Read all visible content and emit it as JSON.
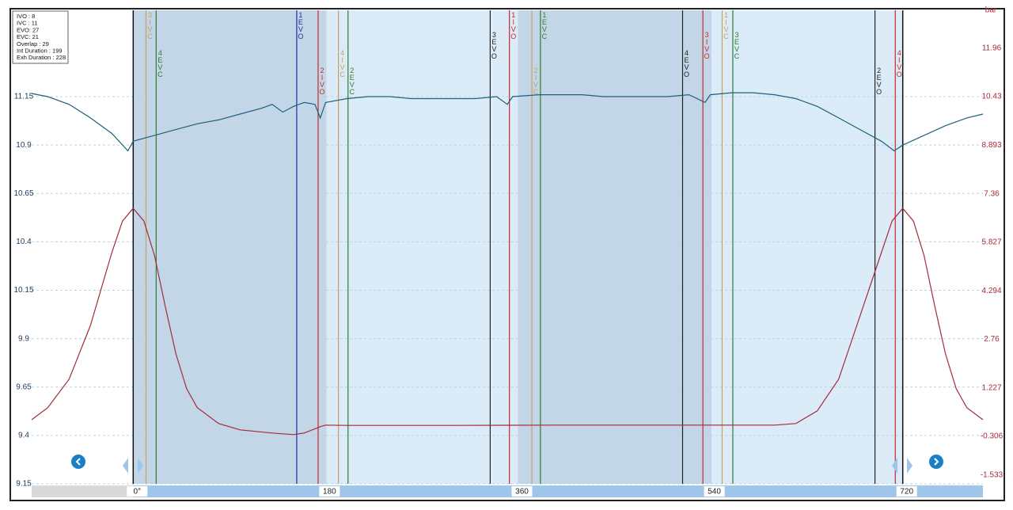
{
  "chart_data": {
    "type": "line",
    "info": [
      "IVO : 8",
      "IVC : 11",
      "EVO: 27",
      "EVC: 21",
      "Overlap : 29",
      "Int Duration : 199",
      "Exh Duration : 228"
    ],
    "y2label": "bar",
    "xlim": [
      -95,
      795
    ],
    "xticks": [
      {
        "value": 0,
        "label": "0°"
      },
      180,
      360,
      540,
      720
    ],
    "ylim": [
      9.15,
      11.596
    ],
    "yticks": [
      11.15,
      10.9,
      10.65,
      10.4,
      10.15,
      9.9,
      9.65,
      9.4,
      9.15
    ],
    "y2lim": [
      -1.808,
      13.16
    ],
    "y2ticks": [
      11.96,
      10.43,
      8.893,
      7.36,
      5.827,
      4.294,
      2.76,
      1.227,
      -0.306,
      -1.533
    ],
    "grid": true,
    "bands": [
      {
        "from": 0,
        "to": 181,
        "color": "#c2d6e8"
      },
      {
        "from": 181,
        "to": 360,
        "color": "#dcebf8"
      },
      {
        "from": 360,
        "to": 541,
        "color": "#c2d6e8"
      },
      {
        "from": 541,
        "to": 720,
        "color": "#dcebf8"
      }
    ],
    "cursors": [
      0,
      720
    ],
    "events": [
      {
        "label": "3 IVC",
        "x": 12,
        "color": "#c8a060"
      },
      {
        "label": "4 EVC",
        "x": 21.5,
        "color": "#2e7d32"
      },
      {
        "label": "1 EVO",
        "x": 153,
        "color": "#1a2fa0"
      },
      {
        "label": "2 IVO",
        "x": 173,
        "color": "#c62828"
      },
      {
        "label": "4 IVC",
        "x": 192,
        "color": "#c8a060"
      },
      {
        "label": "2 EVC",
        "x": 201,
        "color": "#2e7d32"
      },
      {
        "label": "3 EVO",
        "x": 334,
        "color": "#222222"
      },
      {
        "label": "1 IVO",
        "x": 352,
        "color": "#c62828"
      },
      {
        "label": "2 IVC",
        "x": 373,
        "color": "#c8a060"
      },
      {
        "label": "1 EVC",
        "x": 381,
        "color": "#2e7d32"
      },
      {
        "label": "4 EVO",
        "x": 514,
        "color": "#222222"
      },
      {
        "label": "3 IVO",
        "x": 533,
        "color": "#c62828"
      },
      {
        "label": "1 IVC",
        "x": 551,
        "color": "#c8a060"
      },
      {
        "label": "3 EVC",
        "x": 561,
        "color": "#2e7d32"
      },
      {
        "label": "2 EVO",
        "x": 694,
        "color": "#222222"
      },
      {
        "label": "4 IVO",
        "x": 713,
        "color": "#c62828"
      }
    ],
    "series": [
      {
        "color": "#1f5f7a",
        "x": [
          -95,
          -80,
          -60,
          -40,
          -20,
          -5,
          0,
          20,
          40,
          60,
          80,
          100,
          120,
          130,
          140,
          150,
          160,
          170,
          175,
          180,
          200,
          220,
          240,
          260,
          280,
          300,
          320,
          340,
          350,
          355,
          380,
          400,
          420,
          440,
          460,
          480,
          500,
          520,
          535,
          540,
          560,
          580,
          600,
          620,
          640,
          660,
          680,
          700,
          712,
          720,
          740,
          760,
          780,
          795
        ],
        "values": [
          11.166,
          11.15,
          11.11,
          11.04,
          10.96,
          10.87,
          10.92,
          10.95,
          10.98,
          11.01,
          11.03,
          11.06,
          11.09,
          11.11,
          11.07,
          11.1,
          11.12,
          11.11,
          11.04,
          11.12,
          11.14,
          11.15,
          11.15,
          11.14,
          11.14,
          11.14,
          11.14,
          11.15,
          11.11,
          11.15,
          11.16,
          11.16,
          11.16,
          11.15,
          11.15,
          11.15,
          11.15,
          11.16,
          11.12,
          11.16,
          11.17,
          11.17,
          11.16,
          11.14,
          11.1,
          11.04,
          10.98,
          10.92,
          10.87,
          10.9,
          10.95,
          11.0,
          11.04,
          11.06
        ]
      },
      {
        "color": "#a52a3a",
        "axis": "y2",
        "x": [
          -95,
          -80,
          -60,
          -40,
          -20,
          -10,
          0,
          10,
          20,
          30,
          40,
          50,
          60,
          80,
          100,
          130,
          150,
          160,
          175,
          180,
          200,
          300,
          400,
          500,
          600,
          620,
          640,
          660,
          680,
          700,
          710,
          720,
          730,
          740,
          750,
          760,
          770,
          780,
          795
        ],
        "values": [
          0.22,
          0.6,
          1.5,
          3.2,
          5.5,
          6.5,
          6.9,
          6.5,
          5.4,
          3.8,
          2.3,
          1.2,
          0.6,
          0.1,
          -0.1,
          -0.2,
          -0.25,
          -0.2,
          0.0,
          0.05,
          0.04,
          0.04,
          0.05,
          0.05,
          0.05,
          0.1,
          0.5,
          1.5,
          3.5,
          5.5,
          6.5,
          6.9,
          6.5,
          5.4,
          3.8,
          2.3,
          1.2,
          0.6,
          0.22
        ]
      }
    ]
  }
}
